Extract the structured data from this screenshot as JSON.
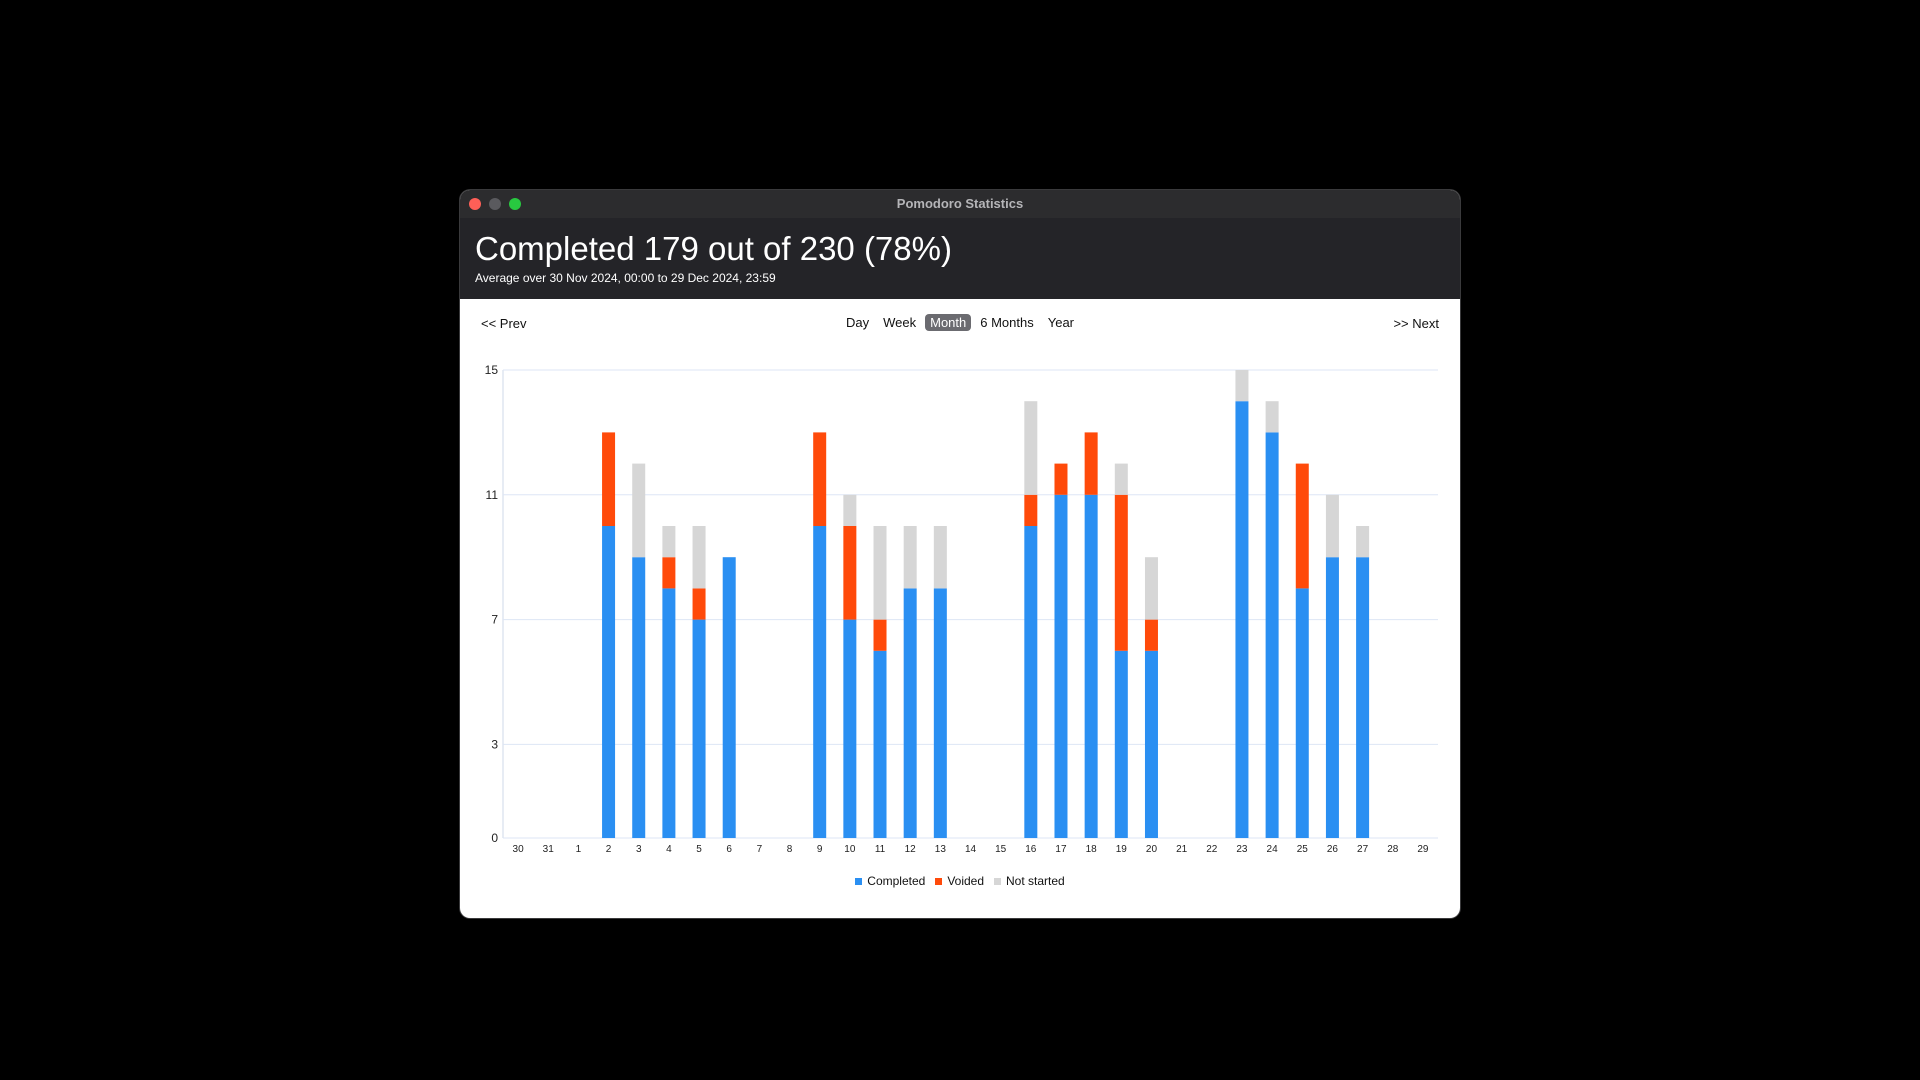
{
  "window": {
    "title": "Pomodoro Statistics"
  },
  "header": {
    "headline": "Completed 179 out of 230 (78%)",
    "subline": "Average over 30 Nov 2024, 00:00 to 29 Dec 2024, 23:59"
  },
  "nav": {
    "prev_label": "<< Prev",
    "next_label": ">> Next",
    "periods": [
      "Day",
      "Week",
      "Month",
      "6 Months",
      "Year"
    ],
    "active_period": "Month"
  },
  "colors": {
    "completed": "#2a8ff2",
    "voided": "#ff4a0a",
    "not_started": "#d6d6d6",
    "grid": "#dde6f5"
  },
  "chart_data": {
    "type": "bar",
    "stacked": true,
    "categories": [
      "30",
      "31",
      "1",
      "2",
      "3",
      "4",
      "5",
      "6",
      "7",
      "8",
      "9",
      "10",
      "11",
      "12",
      "13",
      "14",
      "15",
      "16",
      "17",
      "18",
      "19",
      "20",
      "21",
      "22",
      "23",
      "24",
      "25",
      "26",
      "27",
      "28",
      "29"
    ],
    "y_ticks": [
      "0",
      "3",
      "7",
      "11",
      "15"
    ],
    "ylim": [
      0,
      15
    ],
    "grid": true,
    "legend_position": "bottom",
    "series": [
      {
        "name": "Completed",
        "values": [
          0,
          0,
          0,
          10,
          9,
          8,
          7,
          9,
          0,
          0,
          10,
          7,
          6,
          8,
          8,
          0,
          0,
          10,
          11,
          11,
          6,
          6,
          0,
          0,
          14,
          13,
          8,
          9,
          9,
          0,
          0
        ]
      },
      {
        "name": "Voided",
        "values": [
          0,
          0,
          0,
          3,
          0,
          1,
          1,
          0,
          0,
          0,
          3,
          3,
          1,
          0,
          0,
          0,
          0,
          1,
          1,
          2,
          5,
          1,
          0,
          0,
          0,
          0,
          4,
          0,
          0,
          0,
          0
        ]
      },
      {
        "name": "Not started",
        "values": [
          0,
          0,
          0,
          0,
          3,
          1,
          2,
          0,
          0,
          0,
          0,
          1,
          3,
          2,
          2,
          0,
          0,
          3,
          0,
          0,
          1,
          2,
          0,
          0,
          1,
          1,
          0,
          2,
          1,
          0,
          0
        ]
      }
    ]
  }
}
